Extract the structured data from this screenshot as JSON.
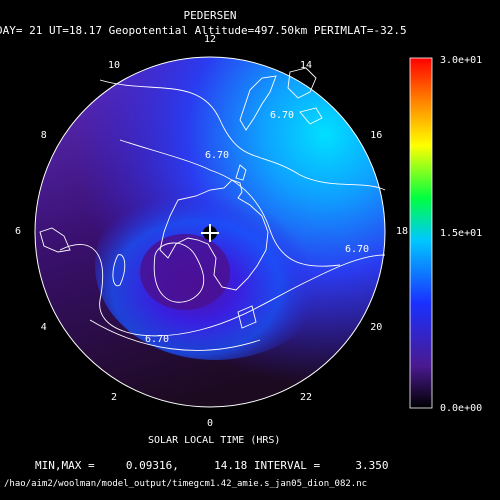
{
  "header": {
    "title": "PEDERSEN",
    "subtitle": "DAY= 21 UT=18.17 Geopotential Altitude=497.50km PERIMLAT=-32.5"
  },
  "chart_data": {
    "type": "heatmap",
    "projection": "polar-stereographic (south pole)",
    "title": "PEDERSEN",
    "xlabel": "SOLAR LOCAL TIME (HRS)",
    "hour_labels": [
      "12",
      "14",
      "16",
      "18",
      "20",
      "22",
      "0",
      "2",
      "4",
      "6",
      "8",
      "10"
    ],
    "colorbar": {
      "labels": [
        "3.0e+01",
        "1.5e+01",
        "0.0e+00"
      ],
      "range": [
        0,
        30
      ],
      "colormap": "black-purple-blue-cyan-green-yellow-orange-red"
    },
    "contour_labels": [
      "6.70",
      "6.70",
      "6.70",
      "6.70"
    ],
    "contour_level": 6.7,
    "min": 0.09316,
    "max": 14.18,
    "interval": 3.35
  },
  "stats": {
    "prefix": "MIN,MAX =",
    "min_text": "0.09316,",
    "max_text": "14.18",
    "interval_label": "INTERVAL =",
    "interval_text": "3.350"
  },
  "footer": {
    "path": "/hao/aim2/woolman/model_output/timegcm1.42_amie.s_jan05_dion_082.nc"
  },
  "colors": {
    "background": "#000000",
    "foreground": "#ffffff"
  }
}
